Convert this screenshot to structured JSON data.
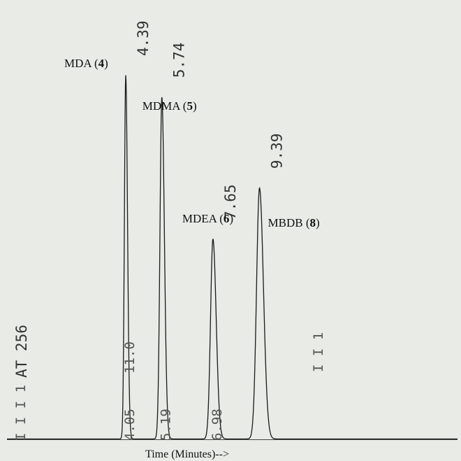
{
  "chart_data": {
    "type": "line",
    "title": "",
    "xlabel": "Time (Minutes)-->",
    "ylabel": "",
    "xlim": [
      2.0,
      11.0
    ],
    "ylim": [
      0,
      100
    ],
    "attenuation_label": "AT 256",
    "event_markers": {
      "left": "I I I 1",
      "right": "I I 1"
    },
    "peaks": [
      {
        "rt": 4.39,
        "rt_label": "4.39",
        "height": 100,
        "width": 0.05,
        "compound": "MDA",
        "number": "4",
        "start_label": "4.05",
        "end_label": "11.0"
      },
      {
        "rt": 5.74,
        "rt_label": "5.74",
        "height": 94,
        "width": 0.07,
        "compound": "MDMA",
        "number": "5",
        "start_label": "5.19",
        "end_label": ""
      },
      {
        "rt": 7.65,
        "rt_label": "7.65",
        "height": 55,
        "width": 0.09,
        "compound": "MDEA",
        "number": "6",
        "start_label": "6.98",
        "end_label": ""
      },
      {
        "rt": 9.39,
        "rt_label": "9.39",
        "height": 69,
        "width": 0.11,
        "compound": "MBDB",
        "number": "8",
        "start_label": "",
        "end_label": ""
      }
    ]
  }
}
